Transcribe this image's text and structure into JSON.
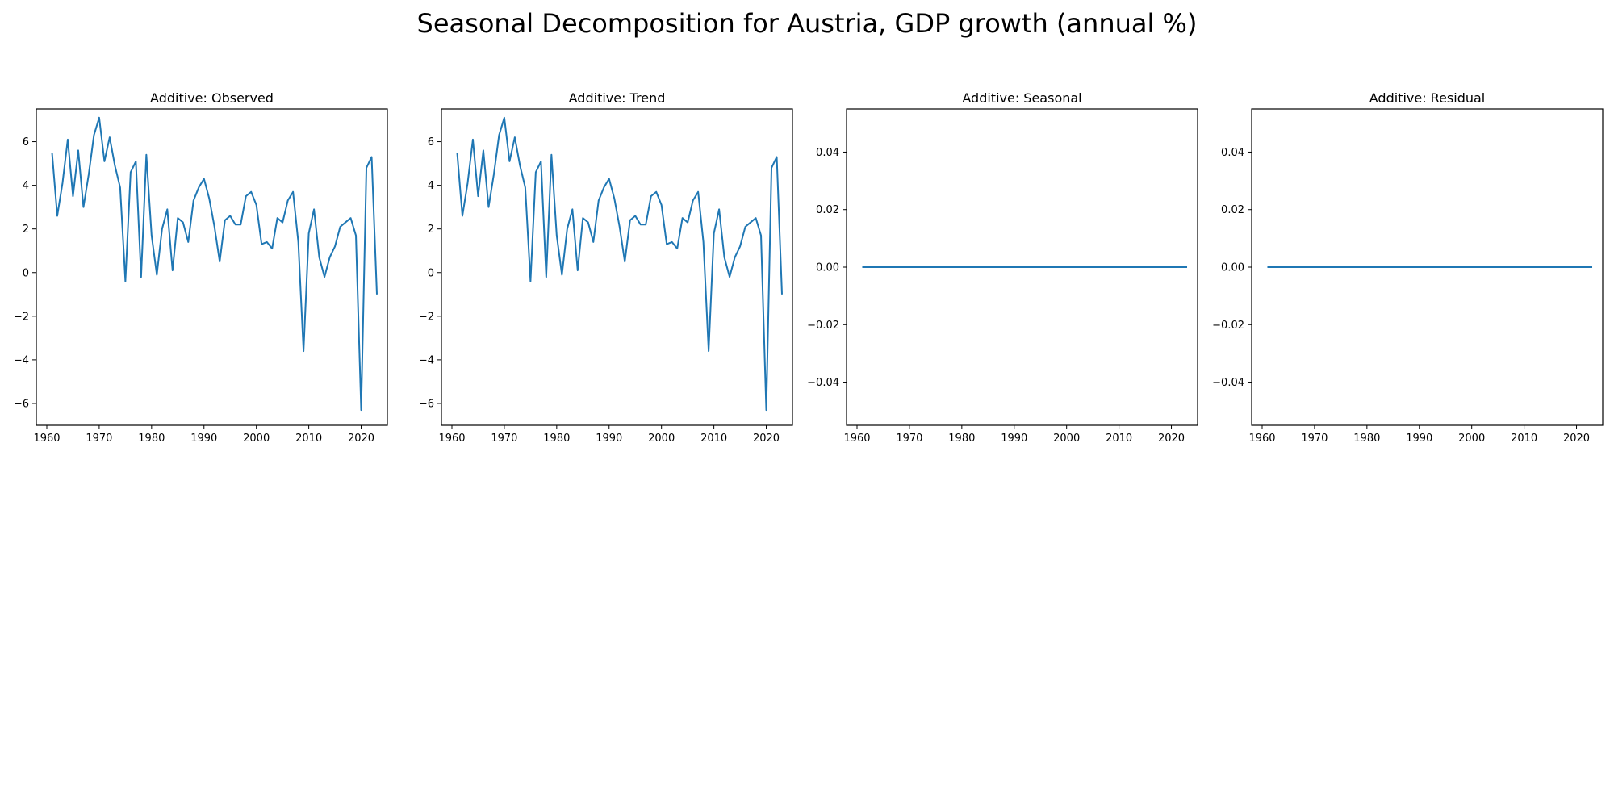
{
  "figure": {
    "title": "Seasonal Decomposition for Austria, GDP growth (annual %)"
  },
  "colors": {
    "line": "#1f77b4",
    "axes": "#000000"
  },
  "chart_data": [
    {
      "type": "line",
      "title": "Additive: Observed",
      "xlabel": "",
      "ylabel": "",
      "xlim": [
        1958,
        2025
      ],
      "ylim": [
        -7,
        7.5
      ],
      "xticks": [
        1960,
        1970,
        1980,
        1990,
        2000,
        2010,
        2020
      ],
      "yticks": [
        -6,
        -4,
        -2,
        0,
        2,
        4,
        6
      ],
      "ytick_labels": [
        "−6",
        "−4",
        "−2",
        "0",
        "2",
        "4",
        "6"
      ],
      "grid": false,
      "series": [
        {
          "x": [
            1961,
            1962,
            1963,
            1964,
            1965,
            1966,
            1967,
            1968,
            1969,
            1970,
            1971,
            1972,
            1973,
            1974,
            1975,
            1976,
            1977,
            1978,
            1979,
            1980,
            1981,
            1982,
            1983,
            1984,
            1985,
            1986,
            1987,
            1988,
            1989,
            1990,
            1991,
            1992,
            1993,
            1994,
            1995,
            1996,
            1997,
            1998,
            1999,
            2000,
            2001,
            2002,
            2003,
            2004,
            2005,
            2006,
            2007,
            2008,
            2009,
            2010,
            2011,
            2012,
            2013,
            2014,
            2015,
            2016,
            2017,
            2018,
            2019,
            2020,
            2021,
            2022,
            2023
          ],
          "values": [
            5.5,
            2.6,
            4.1,
            6.1,
            3.5,
            5.6,
            3.0,
            4.5,
            6.3,
            7.1,
            5.1,
            6.2,
            4.9,
            3.9,
            -0.4,
            4.6,
            5.1,
            -0.2,
            5.4,
            1.7,
            -0.1,
            2.0,
            2.9,
            0.1,
            2.5,
            2.3,
            1.4,
            3.3,
            3.9,
            4.3,
            3.4,
            2.1,
            0.5,
            2.4,
            2.6,
            2.2,
            2.2,
            3.5,
            3.7,
            3.1,
            1.3,
            1.4,
            1.1,
            2.5,
            2.3,
            3.3,
            3.7,
            1.4,
            -3.6,
            1.8,
            2.9,
            0.7,
            -0.2,
            0.7,
            1.2,
            2.1,
            2.3,
            2.5,
            1.7,
            -6.3,
            4.8,
            5.3,
            -1.0
          ]
        }
      ]
    },
    {
      "type": "line",
      "title": "Additive: Trend",
      "xlabel": "",
      "ylabel": "",
      "xlim": [
        1958,
        2025
      ],
      "ylim": [
        -7,
        7.5
      ],
      "xticks": [
        1960,
        1970,
        1980,
        1990,
        2000,
        2010,
        2020
      ],
      "yticks": [
        -6,
        -4,
        -2,
        0,
        2,
        4,
        6
      ],
      "ytick_labels": [
        "−6",
        "−4",
        "−2",
        "0",
        "2",
        "4",
        "6"
      ],
      "grid": false,
      "series": [
        {
          "x": [
            1961,
            1962,
            1963,
            1964,
            1965,
            1966,
            1967,
            1968,
            1969,
            1970,
            1971,
            1972,
            1973,
            1974,
            1975,
            1976,
            1977,
            1978,
            1979,
            1980,
            1981,
            1982,
            1983,
            1984,
            1985,
            1986,
            1987,
            1988,
            1989,
            1990,
            1991,
            1992,
            1993,
            1994,
            1995,
            1996,
            1997,
            1998,
            1999,
            2000,
            2001,
            2002,
            2003,
            2004,
            2005,
            2006,
            2007,
            2008,
            2009,
            2010,
            2011,
            2012,
            2013,
            2014,
            2015,
            2016,
            2017,
            2018,
            2019,
            2020,
            2021,
            2022,
            2023
          ],
          "values": [
            5.5,
            2.6,
            4.1,
            6.1,
            3.5,
            5.6,
            3.0,
            4.5,
            6.3,
            7.1,
            5.1,
            6.2,
            4.9,
            3.9,
            -0.4,
            4.6,
            5.1,
            -0.2,
            5.4,
            1.7,
            -0.1,
            2.0,
            2.9,
            0.1,
            2.5,
            2.3,
            1.4,
            3.3,
            3.9,
            4.3,
            3.4,
            2.1,
            0.5,
            2.4,
            2.6,
            2.2,
            2.2,
            3.5,
            3.7,
            3.1,
            1.3,
            1.4,
            1.1,
            2.5,
            2.3,
            3.3,
            3.7,
            1.4,
            -3.6,
            1.8,
            2.9,
            0.7,
            -0.2,
            0.7,
            1.2,
            2.1,
            2.3,
            2.5,
            1.7,
            -6.3,
            4.8,
            5.3,
            -1.0
          ]
        }
      ]
    },
    {
      "type": "line",
      "title": "Additive: Seasonal",
      "xlabel": "",
      "ylabel": "",
      "xlim": [
        1958,
        2025
      ],
      "ylim": [
        -0.055,
        0.055
      ],
      "xticks": [
        1960,
        1970,
        1980,
        1990,
        2000,
        2010,
        2020
      ],
      "yticks": [
        -0.04,
        -0.02,
        0.0,
        0.02,
        0.04
      ],
      "ytick_labels": [
        "−0.04",
        "−0.02",
        "0.00",
        "0.02",
        "0.04"
      ],
      "grid": false,
      "series": [
        {
          "x": [
            1961,
            2023
          ],
          "values": [
            0.0,
            0.0
          ]
        }
      ]
    },
    {
      "type": "line",
      "title": "Additive: Residual",
      "xlabel": "",
      "ylabel": "",
      "xlim": [
        1958,
        2025
      ],
      "ylim": [
        -0.055,
        0.055
      ],
      "xticks": [
        1960,
        1970,
        1980,
        1990,
        2000,
        2010,
        2020
      ],
      "yticks": [
        -0.04,
        -0.02,
        0.0,
        0.02,
        0.04
      ],
      "ytick_labels": [
        "−0.04",
        "−0.02",
        "0.00",
        "0.02",
        "0.04"
      ],
      "grid": false,
      "series": [
        {
          "x": [
            1961,
            2023
          ],
          "values": [
            0.0,
            0.0
          ]
        }
      ]
    }
  ]
}
